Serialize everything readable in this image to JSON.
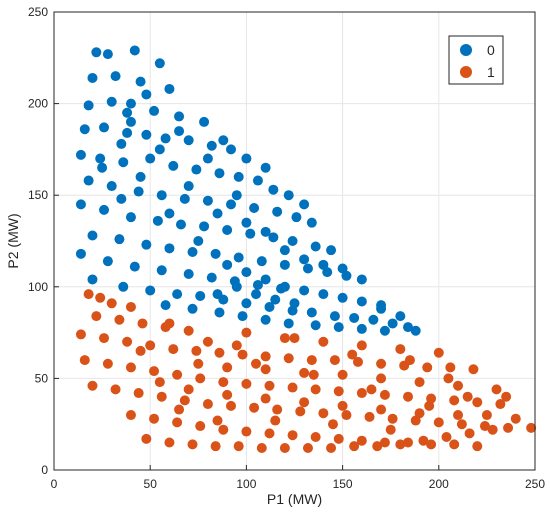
{
  "chart_data": {
    "type": "scatter",
    "title": "",
    "xlabel": "P1 (MW)",
    "ylabel": "P2 (MW)",
    "xlim": [
      0,
      250
    ],
    "ylim": [
      0,
      250
    ],
    "xticks": [
      0,
      50,
      100,
      150,
      200,
      250
    ],
    "yticks": [
      0,
      50,
      100,
      150,
      200,
      250
    ],
    "grid": true,
    "legend_position": "top-right",
    "series": [
      {
        "name": "0",
        "color": "#0072BD",
        "points": [
          [
            22,
            228
          ],
          [
            28,
            227
          ],
          [
            42,
            229
          ],
          [
            55,
            222
          ],
          [
            20,
            214
          ],
          [
            32,
            215
          ],
          [
            45,
            212
          ],
          [
            60,
            208
          ],
          [
            18,
            199
          ],
          [
            30,
            201
          ],
          [
            40,
            200
          ],
          [
            52,
            196
          ],
          [
            65,
            193
          ],
          [
            78,
            190
          ],
          [
            16,
            186
          ],
          [
            26,
            187
          ],
          [
            38,
            184
          ],
          [
            48,
            183
          ],
          [
            58,
            181
          ],
          [
            70,
            180
          ],
          [
            82,
            177
          ],
          [
            92,
            175
          ],
          [
            14,
            172
          ],
          [
            24,
            170
          ],
          [
            36,
            168
          ],
          [
            50,
            170
          ],
          [
            62,
            166
          ],
          [
            74,
            164
          ],
          [
            86,
            162
          ],
          [
            96,
            160
          ],
          [
            106,
            158
          ],
          [
            114,
            153
          ],
          [
            18,
            158
          ],
          [
            30,
            155
          ],
          [
            44,
            152
          ],
          [
            56,
            150
          ],
          [
            68,
            148
          ],
          [
            80,
            147
          ],
          [
            92,
            145
          ],
          [
            104,
            143
          ],
          [
            116,
            141
          ],
          [
            126,
            138
          ],
          [
            134,
            135
          ],
          [
            14,
            145
          ],
          [
            26,
            142
          ],
          [
            40,
            138
          ],
          [
            54,
            136
          ],
          [
            66,
            134
          ],
          [
            78,
            133
          ],
          [
            90,
            131
          ],
          [
            102,
            129
          ],
          [
            114,
            127
          ],
          [
            124,
            125
          ],
          [
            136,
            122
          ],
          [
            144,
            120
          ],
          [
            20,
            128
          ],
          [
            34,
            126
          ],
          [
            48,
            123
          ],
          [
            60,
            121
          ],
          [
            72,
            119
          ],
          [
            84,
            118
          ],
          [
            96,
            116
          ],
          [
            108,
            114
          ],
          [
            120,
            112
          ],
          [
            132,
            110
          ],
          [
            142,
            108
          ],
          [
            152,
            106
          ],
          [
            160,
            104
          ],
          [
            14,
            118
          ],
          [
            28,
            114
          ],
          [
            42,
            111
          ],
          [
            56,
            109
          ],
          [
            70,
            107
          ],
          [
            82,
            105
          ],
          [
            94,
            103
          ],
          [
            106,
            101
          ],
          [
            118,
            99
          ],
          [
            130,
            98
          ],
          [
            140,
            96
          ],
          [
            150,
            94
          ],
          [
            160,
            92
          ],
          [
            170,
            90
          ],
          [
            20,
            104
          ],
          [
            36,
            100
          ],
          [
            50,
            98
          ],
          [
            64,
            96
          ],
          [
            76,
            95
          ],
          [
            88,
            93
          ],
          [
            100,
            91
          ],
          [
            112,
            89
          ],
          [
            124,
            87
          ],
          [
            134,
            86
          ],
          [
            146,
            84
          ],
          [
            156,
            83
          ],
          [
            166,
            82
          ],
          [
            176,
            80
          ],
          [
            184,
            78
          ],
          [
            188,
            76
          ],
          [
            180,
            84
          ],
          [
            170,
            88
          ],
          [
            58,
            90
          ],
          [
            72,
            88
          ],
          [
            86,
            86
          ],
          [
            98,
            84
          ],
          [
            110,
            82
          ],
          [
            122,
            80
          ],
          [
            136,
            79
          ],
          [
            148,
            78
          ],
          [
            160,
            77
          ],
          [
            172,
            76
          ],
          [
            90,
            112
          ],
          [
            100,
            108
          ],
          [
            110,
            104
          ],
          [
            120,
            100
          ],
          [
            85,
            96
          ],
          [
            95,
            100
          ],
          [
            105,
            96
          ],
          [
            115,
            93
          ],
          [
            125,
            91
          ],
          [
            35,
            148
          ],
          [
            45,
            160
          ],
          [
            55,
            175
          ],
          [
            65,
            185
          ],
          [
            38,
            195
          ],
          [
            48,
            205
          ],
          [
            25,
            165
          ],
          [
            35,
            178
          ],
          [
            40,
            190
          ],
          [
            100,
            135
          ],
          [
            110,
            130
          ],
          [
            120,
            120
          ],
          [
            130,
            115
          ],
          [
            140,
            112
          ],
          [
            150,
            110
          ],
          [
            75,
            125
          ],
          [
            85,
            140
          ],
          [
            95,
            150
          ],
          [
            60,
            140
          ],
          [
            70,
            155
          ],
          [
            80,
            170
          ],
          [
            88,
            180
          ],
          [
            100,
            170
          ],
          [
            110,
            165
          ],
          [
            122,
            150
          ],
          [
            130,
            145
          ]
        ]
      },
      {
        "name": "1",
        "color": "#D95319",
        "points": [
          [
            18,
            96
          ],
          [
            24,
            94
          ],
          [
            30,
            91
          ],
          [
            40,
            89
          ],
          [
            22,
            84
          ],
          [
            34,
            82
          ],
          [
            46,
            80
          ],
          [
            58,
            78
          ],
          [
            70,
            76
          ],
          [
            14,
            74
          ],
          [
            26,
            72
          ],
          [
            38,
            70
          ],
          [
            50,
            68
          ],
          [
            62,
            66
          ],
          [
            74,
            65
          ],
          [
            86,
            64
          ],
          [
            98,
            63
          ],
          [
            110,
            62
          ],
          [
            122,
            61
          ],
          [
            134,
            60
          ],
          [
            146,
            60
          ],
          [
            158,
            59
          ],
          [
            170,
            58
          ],
          [
            182,
            57
          ],
          [
            194,
            56
          ],
          [
            206,
            56
          ],
          [
            218,
            55
          ],
          [
            16,
            60
          ],
          [
            28,
            58
          ],
          [
            40,
            56
          ],
          [
            52,
            54
          ],
          [
            64,
            52
          ],
          [
            76,
            50
          ],
          [
            88,
            48
          ],
          [
            100,
            47
          ],
          [
            112,
            46
          ],
          [
            124,
            45
          ],
          [
            136,
            44
          ],
          [
            148,
            43
          ],
          [
            160,
            42
          ],
          [
            172,
            41
          ],
          [
            184,
            40
          ],
          [
            196,
            39
          ],
          [
            208,
            38
          ],
          [
            220,
            37
          ],
          [
            232,
            36
          ],
          [
            20,
            46
          ],
          [
            32,
            44
          ],
          [
            44,
            42
          ],
          [
            56,
            40
          ],
          [
            68,
            38
          ],
          [
            80,
            36
          ],
          [
            92,
            35
          ],
          [
            104,
            34
          ],
          [
            116,
            33
          ],
          [
            128,
            32
          ],
          [
            140,
            31
          ],
          [
            152,
            30
          ],
          [
            164,
            29
          ],
          [
            176,
            28
          ],
          [
            188,
            27
          ],
          [
            200,
            26
          ],
          [
            212,
            25
          ],
          [
            224,
            24
          ],
          [
            236,
            23
          ],
          [
            248,
            23
          ],
          [
            40,
            30
          ],
          [
            52,
            28
          ],
          [
            64,
            26
          ],
          [
            76,
            24
          ],
          [
            88,
            22
          ],
          [
            100,
            21
          ],
          [
            112,
            20
          ],
          [
            124,
            19
          ],
          [
            136,
            18
          ],
          [
            148,
            17
          ],
          [
            160,
            16
          ],
          [
            172,
            15
          ],
          [
            184,
            15
          ],
          [
            196,
            14
          ],
          [
            208,
            14
          ],
          [
            220,
            13
          ],
          [
            48,
            17
          ],
          [
            60,
            15
          ],
          [
            72,
            14
          ],
          [
            84,
            13
          ],
          [
            96,
            13
          ],
          [
            108,
            12
          ],
          [
            120,
            12
          ],
          [
            132,
            12
          ],
          [
            144,
            12
          ],
          [
            156,
            13
          ],
          [
            168,
            13
          ],
          [
            180,
            14
          ],
          [
            192,
            16
          ],
          [
            204,
            18
          ],
          [
            216,
            20
          ],
          [
            228,
            22
          ],
          [
            60,
            80
          ],
          [
            80,
            70
          ],
          [
            100,
            75
          ],
          [
            120,
            72
          ],
          [
            140,
            70
          ],
          [
            160,
            68
          ],
          [
            180,
            66
          ],
          [
            200,
            64
          ],
          [
            90,
            56
          ],
          [
            110,
            55
          ],
          [
            130,
            53
          ],
          [
            150,
            52
          ],
          [
            170,
            50
          ],
          [
            190,
            48
          ],
          [
            210,
            46
          ],
          [
            230,
            44
          ],
          [
            70,
            44
          ],
          [
            90,
            41
          ],
          [
            110,
            39
          ],
          [
            130,
            37
          ],
          [
            150,
            35
          ],
          [
            170,
            33
          ],
          [
            190,
            31
          ],
          [
            210,
            30
          ],
          [
            45,
            65
          ],
          [
            55,
            48
          ],
          [
            65,
            33
          ],
          [
            75,
            58
          ],
          [
            85,
            27
          ],
          [
            95,
            68
          ],
          [
            105,
            58
          ],
          [
            115,
            27
          ],
          [
            125,
            72
          ],
          [
            135,
            52
          ],
          [
            145,
            25
          ],
          [
            155,
            63
          ],
          [
            165,
            44
          ],
          [
            175,
            22
          ],
          [
            185,
            60
          ],
          [
            195,
            35
          ],
          [
            205,
            50
          ],
          [
            215,
            40
          ],
          [
            225,
            30
          ],
          [
            240,
            28
          ],
          [
            235,
            40
          ]
        ]
      }
    ]
  }
}
